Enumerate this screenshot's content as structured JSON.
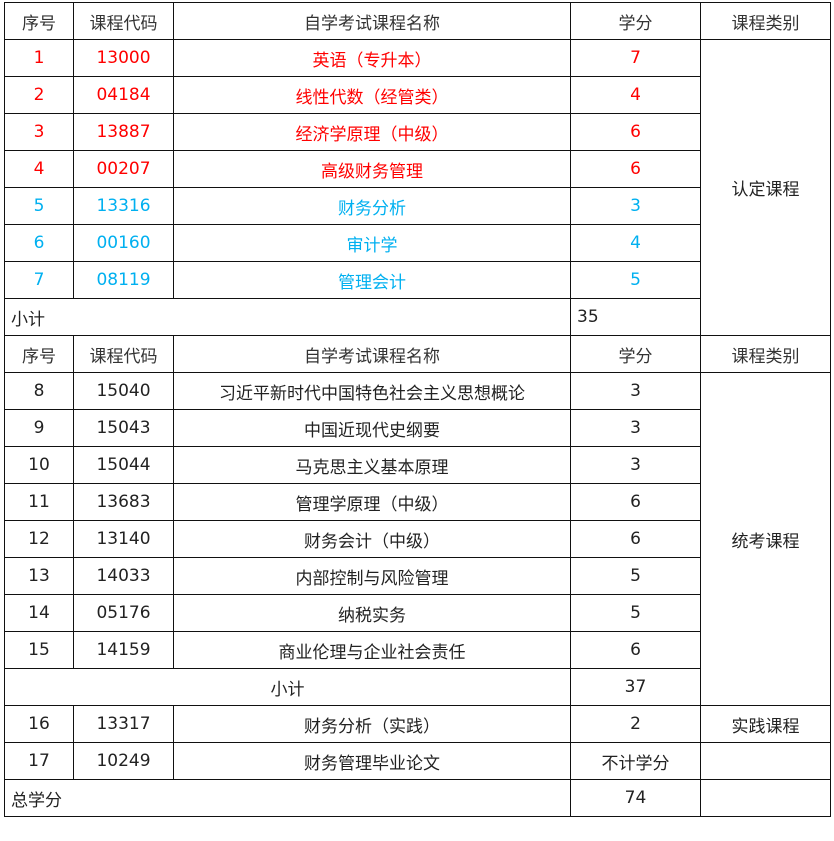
{
  "header": [
    "序号",
    "课程代码",
    "自学考试课程名称",
    "学分",
    "课程类别"
  ],
  "colors": {
    "required_main": "#ff0000",
    "required_other": "#00b0f0"
  },
  "section1": {
    "category": "认定课程",
    "rows": [
      {
        "no": "1",
        "code": "13000",
        "name": "英语（专升本）",
        "credit": "7",
        "color": "red"
      },
      {
        "no": "2",
        "code": "04184",
        "name": "线性代数（经管类）",
        "credit": "4",
        "color": "red"
      },
      {
        "no": "3",
        "code": "13887",
        "name": "经济学原理（中级）",
        "credit": "6",
        "color": "red"
      },
      {
        "no": "4",
        "code": "00207",
        "name": "高级财务管理",
        "credit": "6",
        "color": "red"
      },
      {
        "no": "5",
        "code": "13316",
        "name": "财务分析",
        "credit": "3",
        "color": "blue"
      },
      {
        "no": "6",
        "code": "00160",
        "name": "审计学",
        "credit": "4",
        "color": "blue"
      },
      {
        "no": "7",
        "code": "08119",
        "name": "管理会计",
        "credit": "5",
        "color": "blue"
      }
    ],
    "subtotal_label": "小计",
    "subtotal": "35"
  },
  "section2": {
    "category": "统考课程",
    "rows": [
      {
        "no": "8",
        "code": "15040",
        "name": "习近平新时代中国特色社会主义思想概论",
        "credit": "3"
      },
      {
        "no": "9",
        "code": "15043",
        "name": "中国近现代史纲要",
        "credit": "3"
      },
      {
        "no": "10",
        "code": "15044",
        "name": "马克思主义基本原理",
        "credit": "3"
      },
      {
        "no": "11",
        "code": "13683",
        "name": "管理学原理（中级）",
        "credit": "6"
      },
      {
        "no": "12",
        "code": "13140",
        "name": "财务会计（中级）",
        "credit": "6"
      },
      {
        "no": "13",
        "code": "14033",
        "name": "内部控制与风险管理",
        "credit": "5"
      },
      {
        "no": "14",
        "code": "05176",
        "name": "纳税实务",
        "credit": "5"
      },
      {
        "no": "15",
        "code": "14159",
        "name": "商业伦理与企业社会责任",
        "credit": "6"
      }
    ],
    "subtotal_label": "小计",
    "subtotal": "37"
  },
  "practice": {
    "no": "16",
    "code": "13317",
    "name": "财务分析（实践）",
    "credit": "2",
    "category": "实践课程"
  },
  "thesis": {
    "no": "17",
    "code": "10249",
    "name": "财务管理毕业论文",
    "credit": "不计学分",
    "category": ""
  },
  "total": {
    "label": "总学分",
    "value": "74"
  }
}
